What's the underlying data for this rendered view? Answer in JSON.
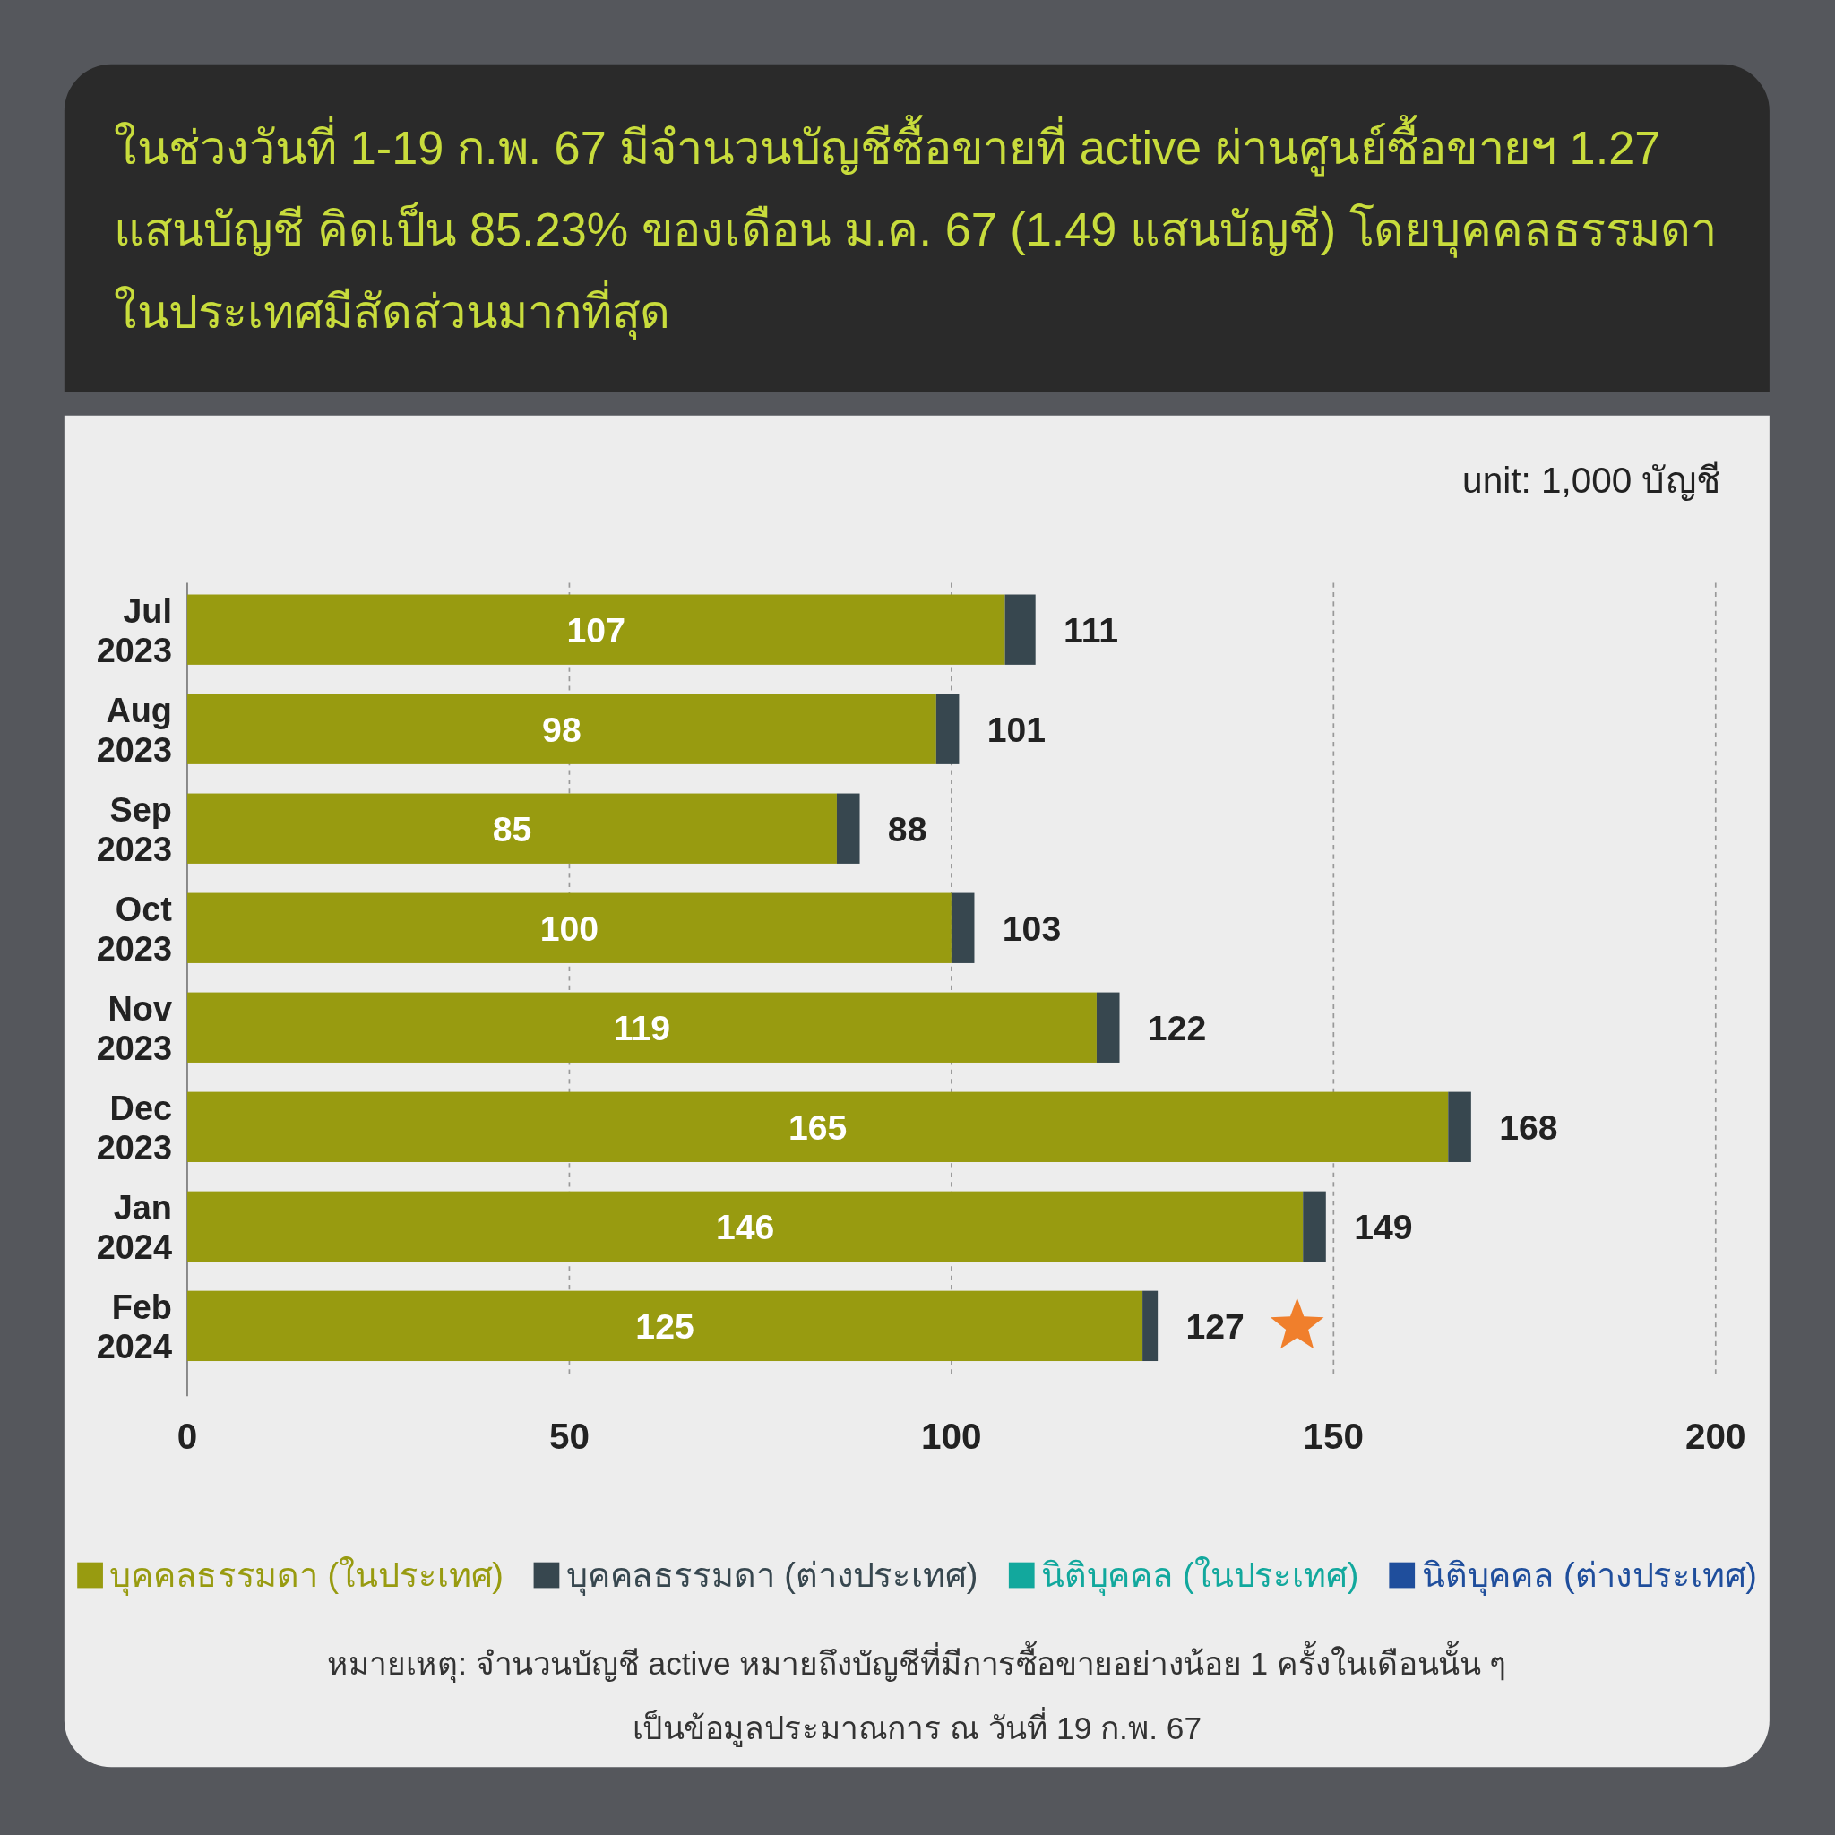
{
  "chart_data": {
    "type": "bar",
    "orientation": "horizontal",
    "stacked": true,
    "title": "ในช่วงวันที่ 1-19 ก.พ. 67 มีจำนวนบัญชีซื้อขายที่ active ผ่านศูนย์ซื้อขายฯ 1.27 แสนบัญชี คิดเป็น 85.23% ของเดือน ม.ค. 67 (1.49 แสนบัญชี) โดยบุคคลธรรมดาในประเทศมีสัดส่วนมากที่สุด",
    "categories": [
      "Jul 2023",
      "Aug 2023",
      "Sep 2023",
      "Oct 2023",
      "Nov 2023",
      "Dec 2023",
      "Jan 2024",
      "Feb 2024"
    ],
    "series": [
      {
        "name": "บุคคลธรรมดา (ในประเทศ)",
        "color": "#989b10",
        "values": [
          107,
          98,
          85,
          100,
          119,
          165,
          146,
          125
        ],
        "value_labels": [
          "107",
          "98",
          "85",
          "100",
          "119",
          "165",
          "146",
          "125"
        ]
      },
      {
        "name": "บุคคลธรรมดา (ต่างประเทศ)",
        "color": "#37474f",
        "values": [
          4,
          3,
          3,
          3,
          3,
          3,
          3,
          2
        ]
      },
      {
        "name": "นิติบุคคล (ในประเทศ)",
        "color": "#12a89d",
        "values": [
          null,
          null,
          null,
          null,
          null,
          null,
          null,
          null
        ]
      },
      {
        "name": "นิติบุคคล (ต่างประเทศ)",
        "color": "#1f4e9c",
        "values": [
          null,
          null,
          null,
          null,
          null,
          null,
          null,
          null
        ]
      }
    ],
    "totals": [
      "111",
      "101",
      "88",
      "103",
      "122",
      "168",
      "149",
      "127"
    ],
    "xlim": [
      0,
      200
    ],
    "xticks": [
      0,
      50,
      100,
      150,
      200
    ],
    "grid": "x",
    "legend": "bottom",
    "annotations": [
      "unit: 1,000 บัญชี",
      "หมายเหตุ: จำนวนบัญชี active หมายถึงบัญชีที่มีการซื้อขายอย่างน้อย 1 ครั้งในเดือนนั้น ๆ",
      "เป็นข้อมูลประมาณการ ณ วันที่ 19 ก.พ. 67"
    ]
  }
}
